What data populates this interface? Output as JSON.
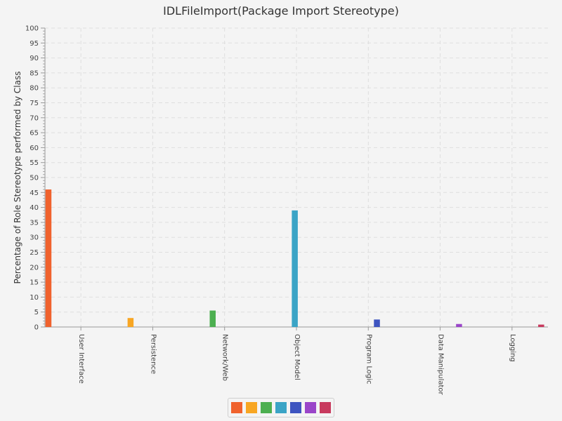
{
  "chart_data": {
    "type": "bar",
    "title": "IDLFileImport(Package Import Stereotype)",
    "ylabel": "Percentage of Role Stereotype performed by Class",
    "xlabel": "",
    "categories": [
      "User Interface",
      "Persistence",
      "Network/Web",
      "Object Model",
      "Program Logic",
      "Data Manipulator",
      "Logging"
    ],
    "values": [
      46.0,
      3.0,
      5.5,
      39.0,
      2.5,
      1.0,
      0.8
    ],
    "ylim": [
      0,
      100
    ],
    "ytick_step": 5,
    "grid": true,
    "legend_position": "bottom-center",
    "colors": [
      "#f0622d",
      "#f8a623",
      "#4caf50",
      "#3ba4c6",
      "#3e54c0",
      "#9a45c9",
      "#c83a5e"
    ]
  }
}
